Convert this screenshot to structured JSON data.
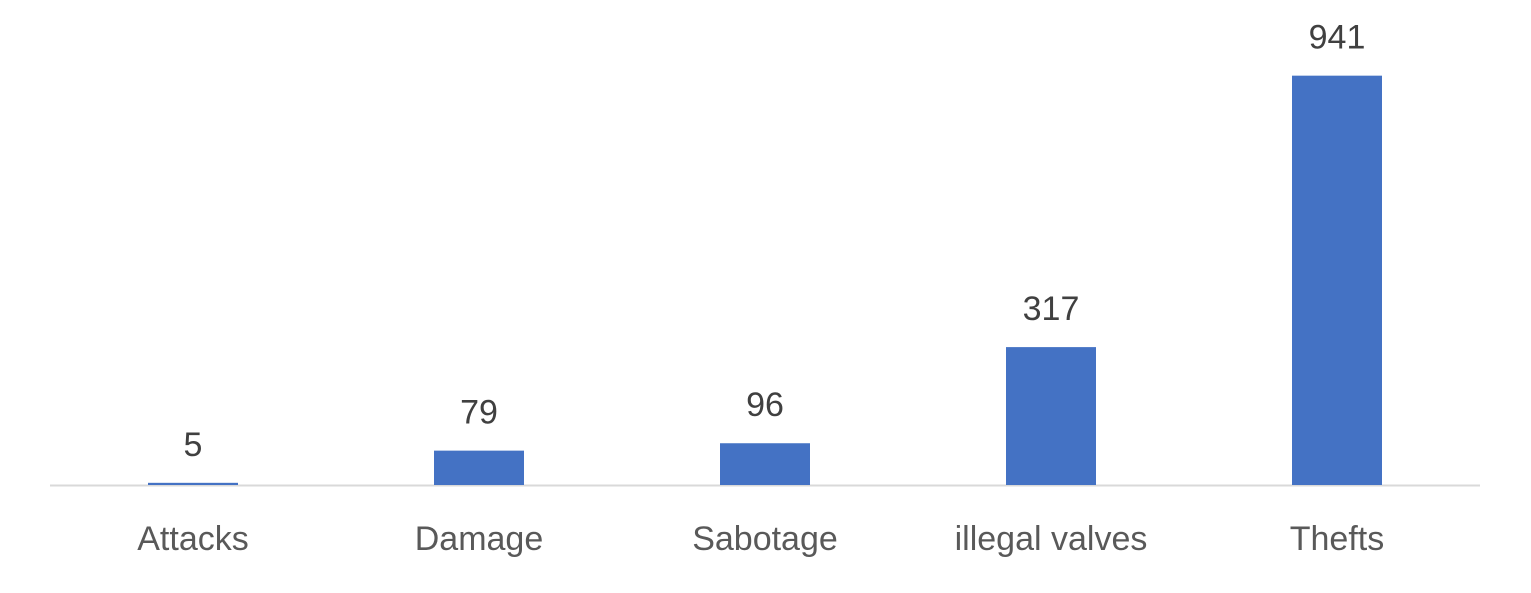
{
  "chart_data": {
    "type": "bar",
    "categories": [
      "Attacks",
      "Damage",
      "Sabotage",
      "illegal valves",
      "Thefts"
    ],
    "values": [
      5,
      79,
      96,
      317,
      941
    ],
    "color": "#4472c4",
    "ylim": [
      0,
      1000
    ]
  }
}
